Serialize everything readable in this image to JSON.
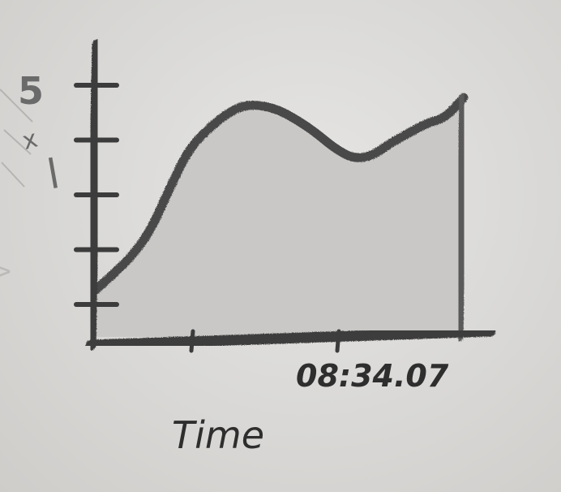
{
  "chart_data": {
    "type": "area",
    "title": "",
    "xlabel": "Time",
    "ylabel": "",
    "side_note": "5 x l",
    "x_tick_label": "08:34.07",
    "y_ticks": 5,
    "x_ticks": 2,
    "x": [
      0,
      0.05,
      0.1,
      0.15,
      0.2,
      0.25,
      0.3,
      0.35,
      0.4,
      0.45,
      0.5,
      0.55,
      0.6,
      0.65,
      0.7,
      0.75,
      0.8,
      0.85,
      0.9,
      0.95,
      1.0
    ],
    "series": [
      {
        "values": [
          0.92,
          1.25,
          1.6,
          2.1,
          2.9,
          3.65,
          4.05,
          4.35,
          4.55,
          4.55,
          4.45,
          4.25,
          4.0,
          3.7,
          3.5,
          3.55,
          3.8,
          4.0,
          4.2,
          4.3,
          4.7
        ]
      }
    ],
    "xlim": [
      0,
      1.0
    ],
    "ylim": [
      0,
      5.5
    ],
    "grid": false,
    "style": "pencil sketch",
    "colors": {
      "stroke": "#4a4a4a",
      "fill": "#c9c8c6",
      "axis": "#3c3c3c",
      "paper": "#dcdbd9"
    }
  }
}
